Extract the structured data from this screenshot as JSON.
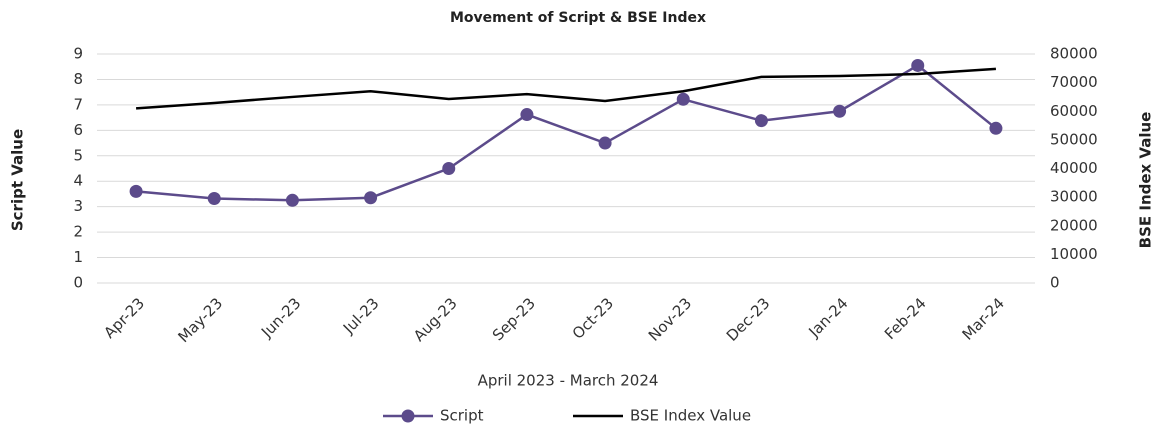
{
  "chart_data": {
    "type": "line",
    "title": "Movement of Script & BSE Index",
    "x_label": "April 2023 - March 2024",
    "y_label": "Script Value",
    "y2_label": "BSE Index Value",
    "categories": [
      "Apr-23",
      "May-23",
      "Jun-23",
      "Jul-23",
      "Aug-23",
      "Sep-23",
      "Oct-23",
      "Nov-23",
      "Dec-23",
      "Jan-24",
      "Feb-24",
      "Mar-24"
    ],
    "series": [
      {
        "name": "Script",
        "color": "#5c4b8b",
        "marker": true,
        "values": [
          3.6,
          3.32,
          3.25,
          3.35,
          4.5,
          6.62,
          5.5,
          7.22,
          6.38,
          6.75,
          8.55,
          6.08
        ]
      },
      {
        "name": "BSE Index Value",
        "color": "#000000",
        "marker": false,
        "axis": "y2",
        "values": [
          61000,
          62900,
          65000,
          67000,
          64300,
          66000,
          63600,
          67000,
          72000,
          72300,
          73000,
          74800
        ]
      }
    ],
    "ylim": [
      0,
      9
    ],
    "yticks": [
      0,
      1,
      2,
      3,
      4,
      5,
      6,
      7,
      8,
      9
    ],
    "y2lim": [
      0,
      80000
    ],
    "y2ticks": [
      0,
      10000,
      20000,
      30000,
      40000,
      50000,
      60000,
      70000,
      80000
    ],
    "grid": true,
    "legend": "bottom"
  }
}
